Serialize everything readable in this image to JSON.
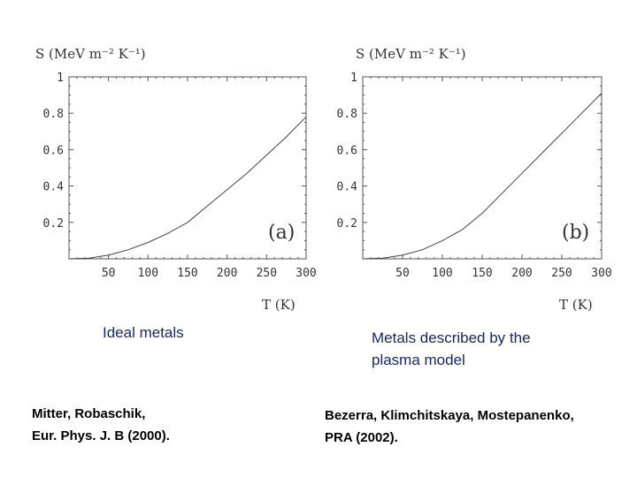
{
  "chart_data": [
    {
      "type": "line",
      "panel": "(a)",
      "xlabel": "T (K)",
      "ylabel": "S (MeV m⁻² K⁻¹)",
      "xlim": [
        0,
        300
      ],
      "ylim": [
        0,
        1
      ],
      "xticks": [
        "50",
        "100",
        "150",
        "200",
        "250",
        "300"
      ],
      "yticks": [
        "0.2",
        "0.4",
        "0.6",
        "0.8",
        "1"
      ],
      "grid": false,
      "x": [
        0,
        25,
        50,
        75,
        100,
        125,
        150,
        175,
        200,
        225,
        250,
        275,
        300
      ],
      "y": [
        0,
        0.004,
        0.02,
        0.05,
        0.09,
        0.14,
        0.2,
        0.29,
        0.38,
        0.47,
        0.57,
        0.67,
        0.78
      ]
    },
    {
      "type": "line",
      "panel": "(b)",
      "xlabel": "T (K)",
      "ylabel": "S (MeV m⁻² K⁻¹)",
      "xlim": [
        0,
        300
      ],
      "ylim": [
        0,
        1
      ],
      "xticks": [
        "50",
        "100",
        "150",
        "200",
        "250",
        "300"
      ],
      "yticks": [
        "0.2",
        "0.4",
        "0.6",
        "0.8",
        "1"
      ],
      "grid": false,
      "x": [
        0,
        25,
        50,
        75,
        100,
        125,
        150,
        175,
        200,
        225,
        250,
        275,
        300
      ],
      "y": [
        0,
        0.004,
        0.02,
        0.05,
        0.1,
        0.16,
        0.25,
        0.36,
        0.47,
        0.58,
        0.69,
        0.8,
        0.91
      ]
    }
  ],
  "captions": {
    "left": "Ideal metals",
    "right_line1": "Metals described by the",
    "right_line2": "plasma model"
  },
  "references": {
    "left_line1": "Mitter, Robaschik,",
    "left_line2": "Eur. Phys. J. B (2000).",
    "right_line1": "Bezerra, Klimchitskaya, Mostepanenko,",
    "right_line2": "PRA (2002)."
  }
}
